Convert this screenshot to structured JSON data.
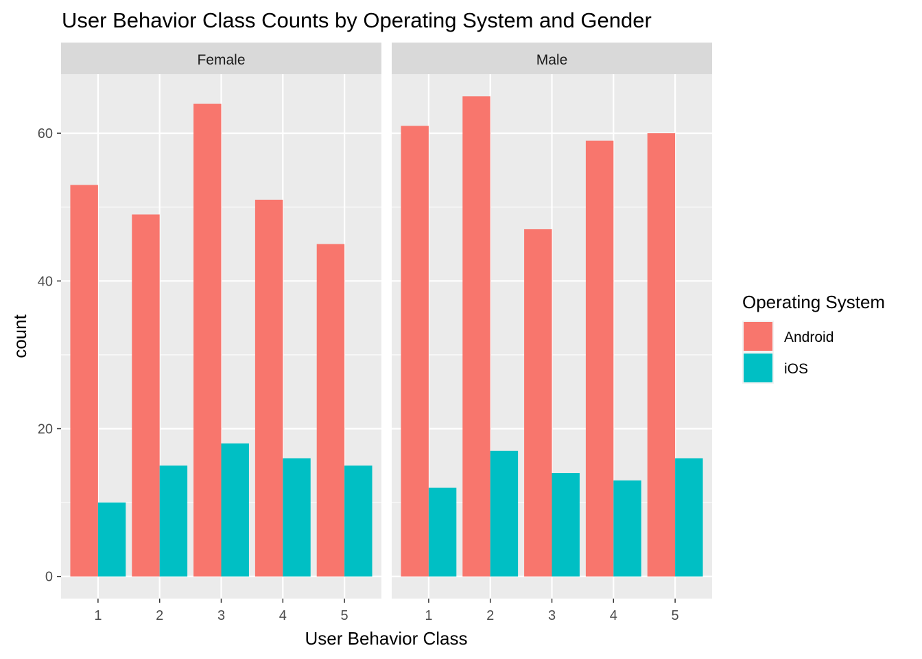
{
  "chart_data": {
    "type": "bar",
    "title": "User Behavior Class Counts by Operating System and Gender",
    "xlabel": "User Behavior Class",
    "ylabel": "count",
    "categories": [
      "1",
      "2",
      "3",
      "4",
      "5"
    ],
    "yticks": [
      0,
      20,
      40,
      60
    ],
    "ylim": [
      -3,
      68
    ],
    "grid": true,
    "legend": {
      "title": "Operating System",
      "position": "right",
      "entries": [
        {
          "name": "Android",
          "color": "#F8766D"
        },
        {
          "name": "iOS",
          "color": "#00BFC4"
        }
      ]
    },
    "facets": [
      {
        "label": "Female",
        "series": [
          {
            "name": "Android",
            "values": [
              53,
              49,
              64,
              51,
              45
            ]
          },
          {
            "name": "iOS",
            "values": [
              10,
              15,
              18,
              16,
              15
            ]
          }
        ]
      },
      {
        "label": "Male",
        "series": [
          {
            "name": "Android",
            "values": [
              61,
              65,
              47,
              59,
              60
            ]
          },
          {
            "name": "iOS",
            "values": [
              12,
              17,
              14,
              13,
              16
            ]
          }
        ]
      }
    ],
    "colors": {
      "panel_background": "#EBEBEB",
      "strip_background": "#D9D9D9",
      "gridline": "#FFFFFF"
    }
  }
}
